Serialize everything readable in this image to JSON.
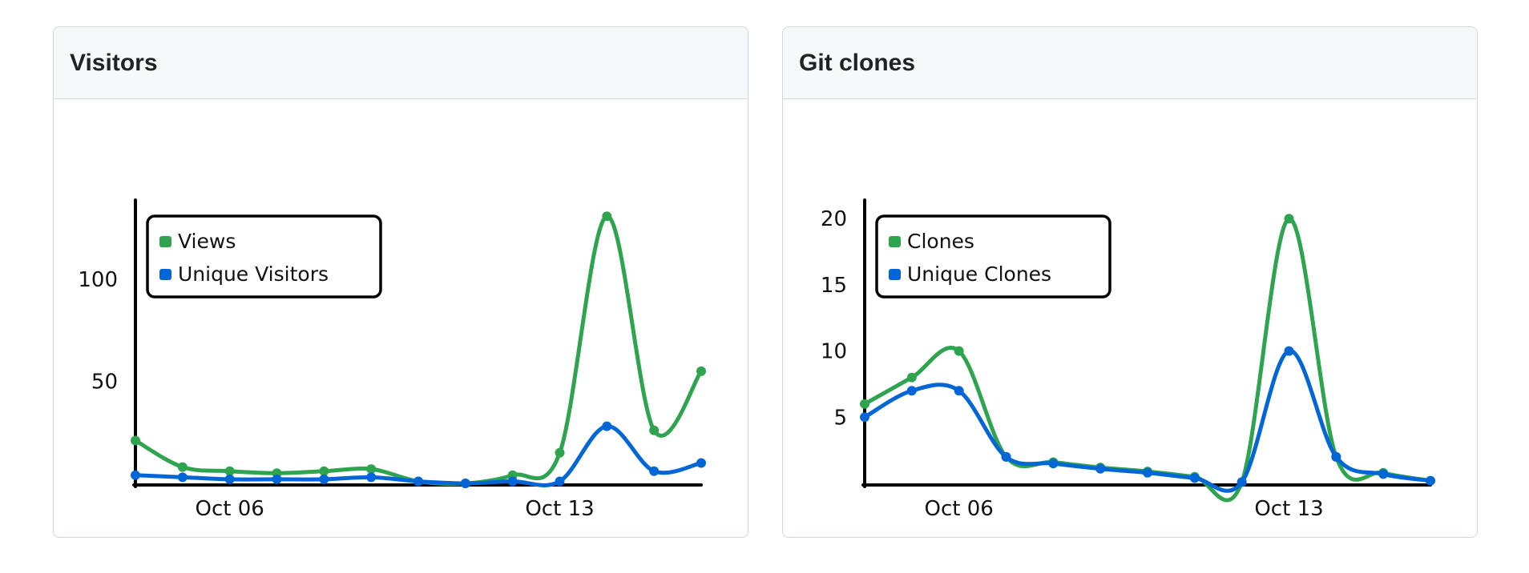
{
  "panels": [
    {
      "id": "visitors",
      "title": "Visitors",
      "chart_data": {
        "type": "line",
        "title": "",
        "xlabel": "",
        "ylabel": "",
        "x": [
          "Oct 04",
          "Oct 05",
          "Oct 06",
          "Oct 07",
          "Oct 08",
          "Oct 09",
          "Oct 10",
          "Oct 11",
          "Oct 12",
          "Oct 13",
          "Oct 14",
          "Oct 15",
          "Oct 16"
        ],
        "x_ticks": [
          {
            "x": "Oct 06",
            "label": "Oct 06"
          },
          {
            "x": "Oct 13",
            "label": "Oct 13"
          }
        ],
        "y_ticks": [
          50,
          100
        ],
        "ylim": [
          0,
          135
        ],
        "legend": "top-left",
        "grid": false,
        "series": [
          {
            "name": "Views",
            "color": "#2ea44f",
            "values": [
              21,
              8,
              6,
              5,
              6,
              7,
              1,
              0,
              4,
              15,
              131,
              26,
              55
            ]
          },
          {
            "name": "Unique Visitors",
            "color": "#0366d6",
            "values": [
              4,
              3,
              2,
              2,
              2,
              3,
              1,
              0,
              1,
              1,
              28,
              6,
              10
            ]
          }
        ]
      }
    },
    {
      "id": "clones",
      "title": "Git clones",
      "chart_data": {
        "type": "line",
        "title": "",
        "xlabel": "",
        "ylabel": "",
        "x": [
          "Oct 04",
          "Oct 05",
          "Oct 06",
          "Oct 07",
          "Oct 08",
          "Oct 09",
          "Oct 10",
          "Oct 11",
          "Oct 12",
          "Oct 13",
          "Oct 14",
          "Oct 15",
          "Oct 16"
        ],
        "x_ticks": [
          {
            "x": "Oct 06",
            "label": "Oct 06"
          },
          {
            "x": "Oct 13",
            "label": "Oct 13"
          }
        ],
        "y_ticks": [
          5,
          10,
          15,
          20
        ],
        "ylim": [
          0,
          20.8
        ],
        "legend": "top-left",
        "grid": false,
        "series": [
          {
            "name": "Clones",
            "color": "#2ea44f",
            "values": [
              6,
              8,
              10,
              2,
              1.6,
              1.2,
              0.9,
              0.5,
              0.1,
              20,
              2,
              0.8,
              0.2
            ]
          },
          {
            "name": "Unique Clones",
            "color": "#0366d6",
            "values": [
              5,
              7,
              7,
              2,
              1.5,
              1.1,
              0.8,
              0.4,
              0.1,
              10,
              2,
              0.7,
              0.2
            ]
          }
        ]
      }
    }
  ]
}
